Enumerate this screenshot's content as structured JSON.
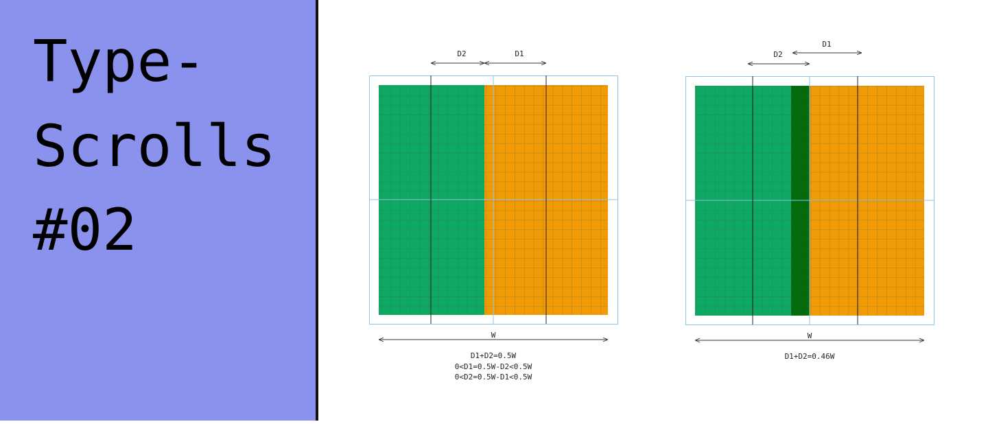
{
  "title": {
    "lines": [
      "Type-",
      "Scrolls",
      "#02"
    ]
  },
  "diagrams": [
    {
      "labels": {
        "d2": "D2",
        "d1": "D1",
        "w": "W"
      },
      "formulas": [
        "D1+D2=0.5W",
        "0<D1=0.5W-D2<0.5W",
        "0<D2=0.5W-D1<0.5W"
      ]
    },
    {
      "labels": {
        "d2": "D2",
        "d1": "D1",
        "w": "W"
      },
      "formulas": [
        "D1+D2=0.46W"
      ]
    }
  ]
}
